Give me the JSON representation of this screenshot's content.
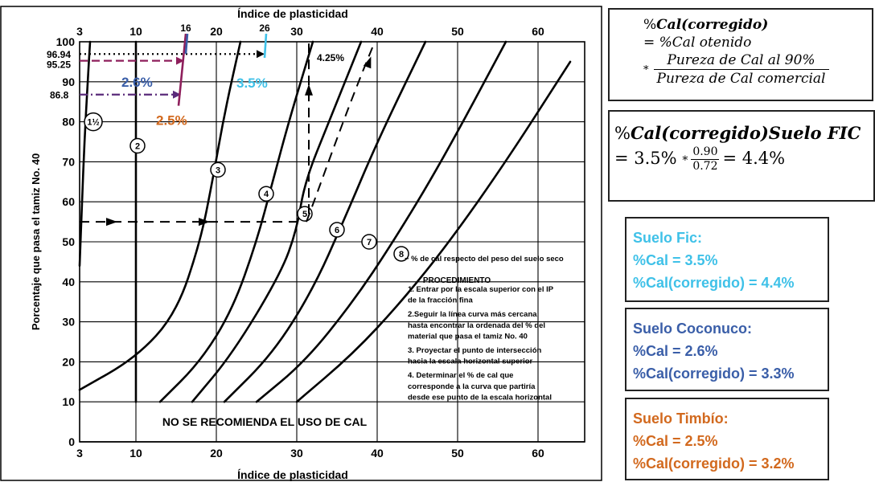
{
  "chart_data": {
    "type": "line",
    "title_top": "Índice de plasticidad",
    "xlabel": "Índice de plasticidad",
    "ylabel": "Porcentaje que pasa el tamiz No. 40",
    "xlim": [
      3,
      65
    ],
    "ylim": [
      0,
      100
    ],
    "x_ticks": [
      3,
      10,
      20,
      30,
      40,
      50,
      60
    ],
    "y_ticks": [
      0,
      10,
      20,
      30,
      40,
      50,
      60,
      70,
      80,
      90,
      100
    ],
    "grid": true,
    "series": [
      {
        "name": "1 1/2",
        "points": [
          [
            3,
            44
          ],
          [
            3.3,
            60
          ],
          [
            3.6,
            75
          ],
          [
            4,
            90
          ],
          [
            4.3,
            100
          ]
        ]
      },
      {
        "name": "2",
        "points": [
          [
            10,
            10
          ],
          [
            10,
            100
          ]
        ]
      },
      {
        "name": "3",
        "points": [
          [
            3,
            13
          ],
          [
            10,
            21
          ],
          [
            15,
            32
          ],
          [
            18,
            50
          ],
          [
            19.5,
            65
          ],
          [
            21,
            82
          ],
          [
            23,
            100
          ]
        ]
      },
      {
        "name": "4",
        "points": [
          [
            13,
            10
          ],
          [
            18,
            20
          ],
          [
            22,
            33
          ],
          [
            25,
            50
          ],
          [
            27,
            65
          ],
          [
            29,
            80
          ],
          [
            32,
            100
          ]
        ]
      },
      {
        "name": "5",
        "points": [
          [
            17,
            10
          ],
          [
            22,
            22
          ],
          [
            28,
            42
          ],
          [
            30,
            53
          ],
          [
            31,
            65
          ],
          [
            34,
            80
          ],
          [
            38,
            100
          ]
        ]
      },
      {
        "name": "6",
        "points": [
          [
            21,
            10
          ],
          [
            27,
            22
          ],
          [
            32,
            38
          ],
          [
            36,
            56
          ],
          [
            40,
            75
          ],
          [
            46,
            100
          ]
        ]
      },
      {
        "name": "7",
        "points": [
          [
            25,
            10
          ],
          [
            31,
            20
          ],
          [
            37,
            35
          ],
          [
            42,
            50
          ],
          [
            48,
            70
          ],
          [
            56,
            100
          ]
        ]
      },
      {
        "name": "8",
        "points": [
          [
            30,
            10
          ],
          [
            37,
            22
          ],
          [
            43,
            35
          ],
          [
            49,
            50
          ],
          [
            56,
            70
          ],
          [
            64,
            95
          ]
        ]
      }
    ],
    "curve_labels": [
      "1½",
      "2",
      "3",
      "4",
      "5",
      "6",
      "7",
      "8"
    ],
    "annotation_curve_note": "~ % de cal respecto del peso del suelo seco",
    "example_label": "4.25%",
    "no_recommend_text": "NO SE RECOMIENDA EL USO DE CAL",
    "procedure": {
      "title": "PROCEDIMIENTO",
      "lines": [
        "1. Entrar por la escala superior con el IP",
        "de la fracción fina",
        "2.Seguir la línea curva más cercana",
        "hasta encontrar la ordenada del % del",
        "material que pasa el tamiz No. 40",
        "3. Proyectar el punto de intersección",
        "hacia la escala horizontal superior",
        "4. Determinar el % de cal que",
        "corresponde a la curva que partiría",
        "desde ese punto de la escala horizontal"
      ]
    },
    "overlays": {
      "top_markers": [
        "16",
        "26"
      ],
      "left_values": [
        "96.94",
        "95.25",
        "86.8"
      ],
      "labels": [
        {
          "text": "2.6%",
          "color": "#3a5ea8"
        },
        {
          "text": "2.5%",
          "color": "#d2691e"
        },
        {
          "text": "3.5%",
          "color": "#3fc1e8"
        }
      ]
    }
  },
  "formula1": {
    "lhs_prefix": "%",
    "lhs_main": "Cal(corregido)",
    "line2": "= %Cal otenido",
    "mult": "*",
    "numerator": "Pureza de Cal al 90%",
    "denominator": "Pureza de Cal comercial"
  },
  "formula2": {
    "lhs_prefix": "%",
    "lhs_main": "Cal(corregido)Suelo FIC",
    "rhs_start": "= 3.5% ",
    "mult": "*",
    "numerator": "0.90",
    "denominator": "0.72",
    "rhs_end": "= 4.4%"
  },
  "soils": [
    {
      "name": "Suelo Fic:",
      "cal": "%Cal = 3.5%",
      "corr": "%Cal(corregido) = 4.4%",
      "color": "#3fc1e8"
    },
    {
      "name": "Suelo Coconuco:",
      "cal": "%Cal = 2.6%",
      "corr": "%Cal(corregido) = 3.3%",
      "color": "#3a5ea8"
    },
    {
      "name": "Suelo Timbío:",
      "cal": "%Cal = 2.5%",
      "corr": "%Cal(corregido) = 3.2%",
      "color": "#d2691e"
    }
  ]
}
